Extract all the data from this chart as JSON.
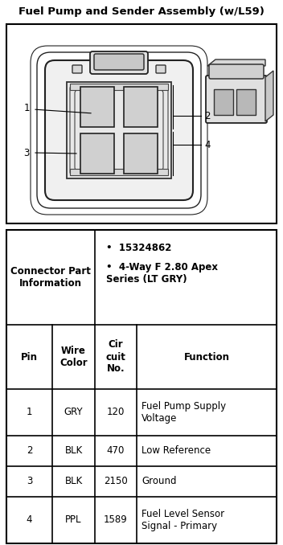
{
  "title": "Fuel Pump and Sender Assembly (w/L59)",
  "connector_part_label": "Connector Part\nInformation",
  "connector_part_bullet1": "15324862",
  "connector_part_bullet2": "4-Way F 2.80 Apex\nSeries (LT GRY)",
  "table_headers_line1": [
    "Pin",
    "Wire",
    "Cir",
    "Function"
  ],
  "table_headers_line2": [
    "",
    "Color",
    "cuit",
    ""
  ],
  "table_headers_line3": [
    "",
    "",
    "No.",
    ""
  ],
  "table_rows": [
    [
      "1",
      "GRY",
      "120",
      "Fuel Pump Supply\nVoltage"
    ],
    [
      "2",
      "BLK",
      "470",
      "Low Reference"
    ],
    [
      "3",
      "BLK",
      "2150",
      "Ground"
    ],
    [
      "4",
      "PPL",
      "1589",
      "Fuel Level Sensor\nSignal - Primary"
    ]
  ],
  "bg_color": "#ffffff",
  "border_color": "#000000",
  "text_color": "#000000",
  "fig_width": 3.52,
  "fig_height": 6.78,
  "dpi": 100
}
